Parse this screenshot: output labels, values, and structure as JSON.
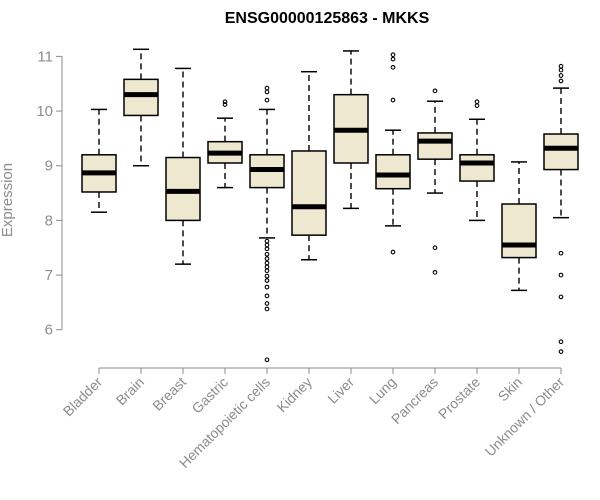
{
  "chart_data": {
    "type": "boxplot",
    "title": "ENSG00000125863 - MKKS",
    "xlabel": "",
    "ylabel": "Expression",
    "ylim": [
      5.3,
      11.3
    ],
    "yticks": [
      6,
      7,
      8,
      9,
      10,
      11
    ],
    "grid": false,
    "box_fill": "#efe8d0",
    "box_stroke": "#000000",
    "axis_color": "#8c8c8c",
    "categories": [
      "Bladder",
      "Brain",
      "Breast",
      "Gastric",
      "Hematopoietic cells",
      "Kidney",
      "Liver",
      "Lung",
      "Pancreas",
      "Prostate",
      "Skin",
      "Unknown / Other"
    ],
    "boxes": [
      {
        "name": "Bladder",
        "whisker_low": 8.15,
        "q1": 8.52,
        "median": 8.87,
        "q3": 9.2,
        "whisker_high": 10.03,
        "outliers": []
      },
      {
        "name": "Brain",
        "whisker_low": 9.0,
        "q1": 9.92,
        "median": 10.3,
        "q3": 10.58,
        "whisker_high": 11.13,
        "outliers": []
      },
      {
        "name": "Breast",
        "whisker_low": 7.2,
        "q1": 8.0,
        "median": 8.53,
        "q3": 9.15,
        "whisker_high": 10.78,
        "outliers": []
      },
      {
        "name": "Gastric",
        "whisker_low": 8.6,
        "q1": 9.05,
        "median": 9.23,
        "q3": 9.44,
        "whisker_high": 9.87,
        "outliers": [
          10.12,
          10.17
        ]
      },
      {
        "name": "Hematopoietic cells",
        "whisker_low": 7.68,
        "q1": 8.6,
        "median": 8.93,
        "q3": 9.2,
        "whisker_high": 10.03,
        "outliers": [
          10.42,
          10.35,
          10.2,
          7.62,
          7.55,
          7.48,
          7.38,
          7.3,
          7.22,
          7.15,
          7.08,
          6.98,
          6.9,
          6.78,
          6.62,
          6.48,
          6.38,
          5.45
        ]
      },
      {
        "name": "Kidney",
        "whisker_low": 7.28,
        "q1": 7.73,
        "median": 8.25,
        "q3": 9.27,
        "whisker_high": 10.72,
        "outliers": []
      },
      {
        "name": "Liver",
        "whisker_low": 8.22,
        "q1": 9.05,
        "median": 9.65,
        "q3": 10.3,
        "whisker_high": 11.1,
        "outliers": []
      },
      {
        "name": "Lung",
        "whisker_low": 7.9,
        "q1": 8.58,
        "median": 8.83,
        "q3": 9.2,
        "whisker_high": 9.65,
        "outliers": [
          11.03,
          10.95,
          10.8,
          10.2,
          7.42
        ]
      },
      {
        "name": "Pancreas",
        "whisker_low": 8.5,
        "q1": 9.12,
        "median": 9.45,
        "q3": 9.6,
        "whisker_high": 10.18,
        "outliers": [
          10.37,
          7.5,
          7.05
        ]
      },
      {
        "name": "Prostate",
        "whisker_low": 8.0,
        "q1": 8.72,
        "median": 9.05,
        "q3": 9.2,
        "whisker_high": 9.85,
        "outliers": [
          10.17,
          10.1
        ]
      },
      {
        "name": "Skin",
        "whisker_low": 6.72,
        "q1": 7.32,
        "median": 7.55,
        "q3": 8.3,
        "whisker_high": 9.07,
        "outliers": []
      },
      {
        "name": "Unknown / Other",
        "whisker_low": 8.05,
        "q1": 8.93,
        "median": 9.32,
        "q3": 9.58,
        "whisker_high": 10.42,
        "outliers": [
          10.82,
          10.75,
          10.65,
          10.55,
          7.4,
          7.0,
          6.6,
          5.78,
          5.6
        ]
      }
    ]
  }
}
